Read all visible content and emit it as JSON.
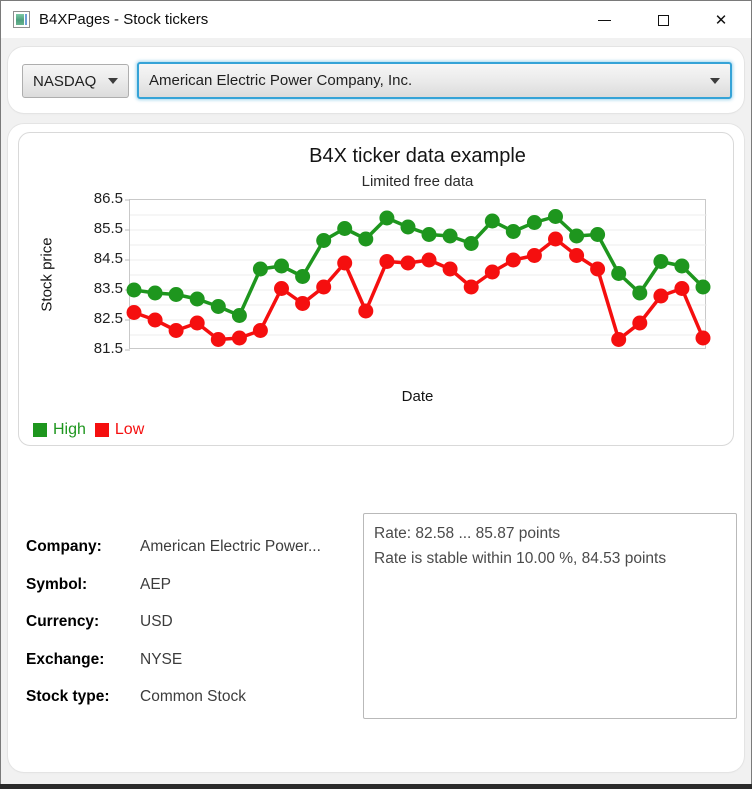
{
  "window": {
    "title": "B4XPages - Stock tickers",
    "close_glyph": "✕"
  },
  "toolbar": {
    "exchange_combo": {
      "value": "NASDAQ"
    },
    "company_combo": {
      "value": "American Electric Power Company, Inc."
    }
  },
  "chart_data": {
    "type": "line",
    "title": "B4X ticker data example",
    "subtitle": "Limited free data",
    "xlabel": "Date",
    "ylabel": "Stock price",
    "ylim": [
      81.5,
      86.5
    ],
    "yticks": [
      86.5,
      85.5,
      84.5,
      83.5,
      82.5,
      81.5
    ],
    "gridline_step": 0.5,
    "x_tick_labels_visible": false,
    "legend_position": "bottom-left",
    "series": [
      {
        "name": "High",
        "color": "#1e961e",
        "values": [
          83.5,
          83.4,
          83.35,
          83.2,
          82.95,
          82.65,
          84.2,
          84.3,
          83.95,
          85.15,
          85.55,
          85.2,
          85.9,
          85.6,
          85.35,
          85.3,
          85.05,
          85.8,
          85.45,
          85.75,
          85.95,
          85.3,
          85.35,
          84.05,
          83.4,
          84.45,
          84.3,
          83.6
        ]
      },
      {
        "name": "Low",
        "color": "#f50f0f",
        "values": [
          82.75,
          82.5,
          82.15,
          82.4,
          81.85,
          81.9,
          82.15,
          83.55,
          83.05,
          83.6,
          84.4,
          82.8,
          84.45,
          84.4,
          84.5,
          84.2,
          83.6,
          84.1,
          84.5,
          84.65,
          85.2,
          84.65,
          84.2,
          81.85,
          82.4,
          83.3,
          83.55,
          81.9
        ]
      }
    ]
  },
  "info": {
    "rows": [
      {
        "label": "Company:",
        "value": "American Electric Power..."
      },
      {
        "label": "Symbol:",
        "value": "AEP"
      },
      {
        "label": "Currency:",
        "value": "USD"
      },
      {
        "label": "Exchange:",
        "value": "NYSE"
      },
      {
        "label": "Stock type:",
        "value": "Common Stock"
      }
    ]
  },
  "summary": {
    "line1": "Rate: 82.58 ... 85.87 points",
    "line2": "Rate is stable within 10.00 %, 84.53 points"
  },
  "colors": {
    "high_series": "#1e961e",
    "low_series": "#f50f0f",
    "focus_ring": "#35a3d7",
    "window_background": "#f1f1f1",
    "bottom_strip": "#2a2a2a"
  }
}
